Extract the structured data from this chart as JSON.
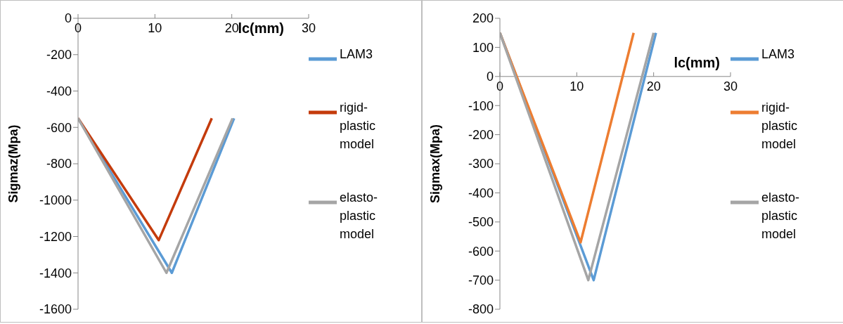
{
  "chart_data": [
    {
      "type": "line",
      "ylabel": "Sigmaz(Mpa)",
      "xlabel": "lc(mm)",
      "xlim": [
        0,
        30
      ],
      "xticks": [
        0,
        10,
        20,
        30
      ],
      "ylim": [
        -1600,
        0
      ],
      "yticks": [
        -1600,
        -1400,
        -1200,
        -1000,
        -800,
        -600,
        -400,
        -200,
        0
      ],
      "grid": false,
      "legend": "right",
      "marker": "none",
      "series": [
        {
          "name": "LAM3",
          "color": "#5b9bd5",
          "x": [
            0,
            12.2,
            20.3
          ],
          "values": [
            -550,
            -1400,
            -550
          ]
        },
        {
          "name": "rigid-plastic model",
          "color": "#c43b0c",
          "x": [
            0,
            10.5,
            17.4
          ],
          "values": [
            -550,
            -1220,
            -550
          ]
        },
        {
          "name": "elasto-plastic model",
          "color": "#a5a5a5",
          "x": [
            0,
            11.5,
            20.1
          ],
          "values": [
            -550,
            -1400,
            -550
          ]
        }
      ]
    },
    {
      "type": "line",
      "ylabel": "Sigmax(Mpa)",
      "xlabel": "lc(mm)",
      "xlim": [
        0,
        30
      ],
      "xticks": [
        0,
        10,
        20,
        30
      ],
      "ylim": [
        -800,
        200
      ],
      "yticks": [
        -800,
        -700,
        -600,
        -500,
        -400,
        -300,
        -200,
        -100,
        0,
        100,
        200
      ],
      "grid": false,
      "legend": "right",
      "marker": "none",
      "series": [
        {
          "name": "LAM3",
          "color": "#5b9bd5",
          "x": [
            0,
            12.2,
            20.3
          ],
          "values": [
            150,
            -700,
            150
          ]
        },
        {
          "name": "rigid-plastic model",
          "color": "#ed7d31",
          "x": [
            0,
            10.5,
            17.4
          ],
          "values": [
            150,
            -570,
            150
          ]
        },
        {
          "name": "elasto-plastic model",
          "color": "#a5a5a5",
          "x": [
            0,
            11.5,
            20.0
          ],
          "values": [
            150,
            -700,
            150
          ]
        }
      ]
    }
  ]
}
